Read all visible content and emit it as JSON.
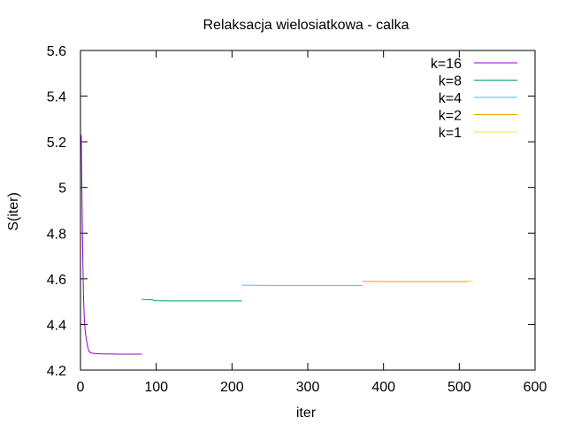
{
  "chart_data": {
    "type": "line",
    "title": "Relaksacja wielosiatkowa - calka",
    "xlabel": "iter",
    "ylabel": "S(iter)",
    "xlim": [
      0,
      600
    ],
    "ylim": [
      4.2,
      5.6
    ],
    "x_ticks": [
      "0",
      "100",
      "200",
      "300",
      "400",
      "500",
      "600"
    ],
    "y_ticks": [
      "4.2",
      "4.4",
      "4.6",
      "4.8",
      "5",
      "5.2",
      "5.4",
      "5.6"
    ],
    "grid": false,
    "legend_position": "top-right",
    "series": [
      {
        "name": "k=16",
        "color": "#9400d3",
        "points": [
          [
            1,
            5.23
          ],
          [
            2,
            4.95
          ],
          [
            3,
            4.7
          ],
          [
            4,
            4.52
          ],
          [
            5,
            4.43
          ],
          [
            6,
            4.38
          ],
          [
            7,
            4.35
          ],
          [
            8,
            4.33
          ],
          [
            9,
            4.31
          ],
          [
            10,
            4.295
          ],
          [
            11,
            4.285
          ],
          [
            12,
            4.28
          ],
          [
            13,
            4.277
          ],
          [
            15,
            4.274
          ],
          [
            20,
            4.272
          ],
          [
            30,
            4.271
          ],
          [
            50,
            4.27
          ],
          [
            81,
            4.27
          ]
        ]
      },
      {
        "name": "k=8",
        "color": "#009e73",
        "points": [
          [
            81,
            4.51
          ],
          [
            85,
            4.509
          ],
          [
            95,
            4.508
          ],
          [
            97,
            4.504
          ],
          [
            120,
            4.503
          ],
          [
            150,
            4.503
          ],
          [
            213,
            4.503
          ]
        ]
      },
      {
        "name": "k=4",
        "color": "#56b4e9",
        "points": [
          [
            213,
            4.572
          ],
          [
            250,
            4.571
          ],
          [
            300,
            4.571
          ],
          [
            372,
            4.571
          ]
        ]
      },
      {
        "name": "k=2",
        "color": "#e69f00",
        "points": [
          [
            372,
            4.589
          ],
          [
            400,
            4.588
          ],
          [
            450,
            4.588
          ],
          [
            512,
            4.588
          ]
        ]
      },
      {
        "name": "k=1",
        "color": "#f0e442",
        "points": [
          [
            512,
            4.591
          ],
          [
            515,
            4.591
          ],
          [
            518,
            4.591
          ]
        ]
      }
    ]
  }
}
